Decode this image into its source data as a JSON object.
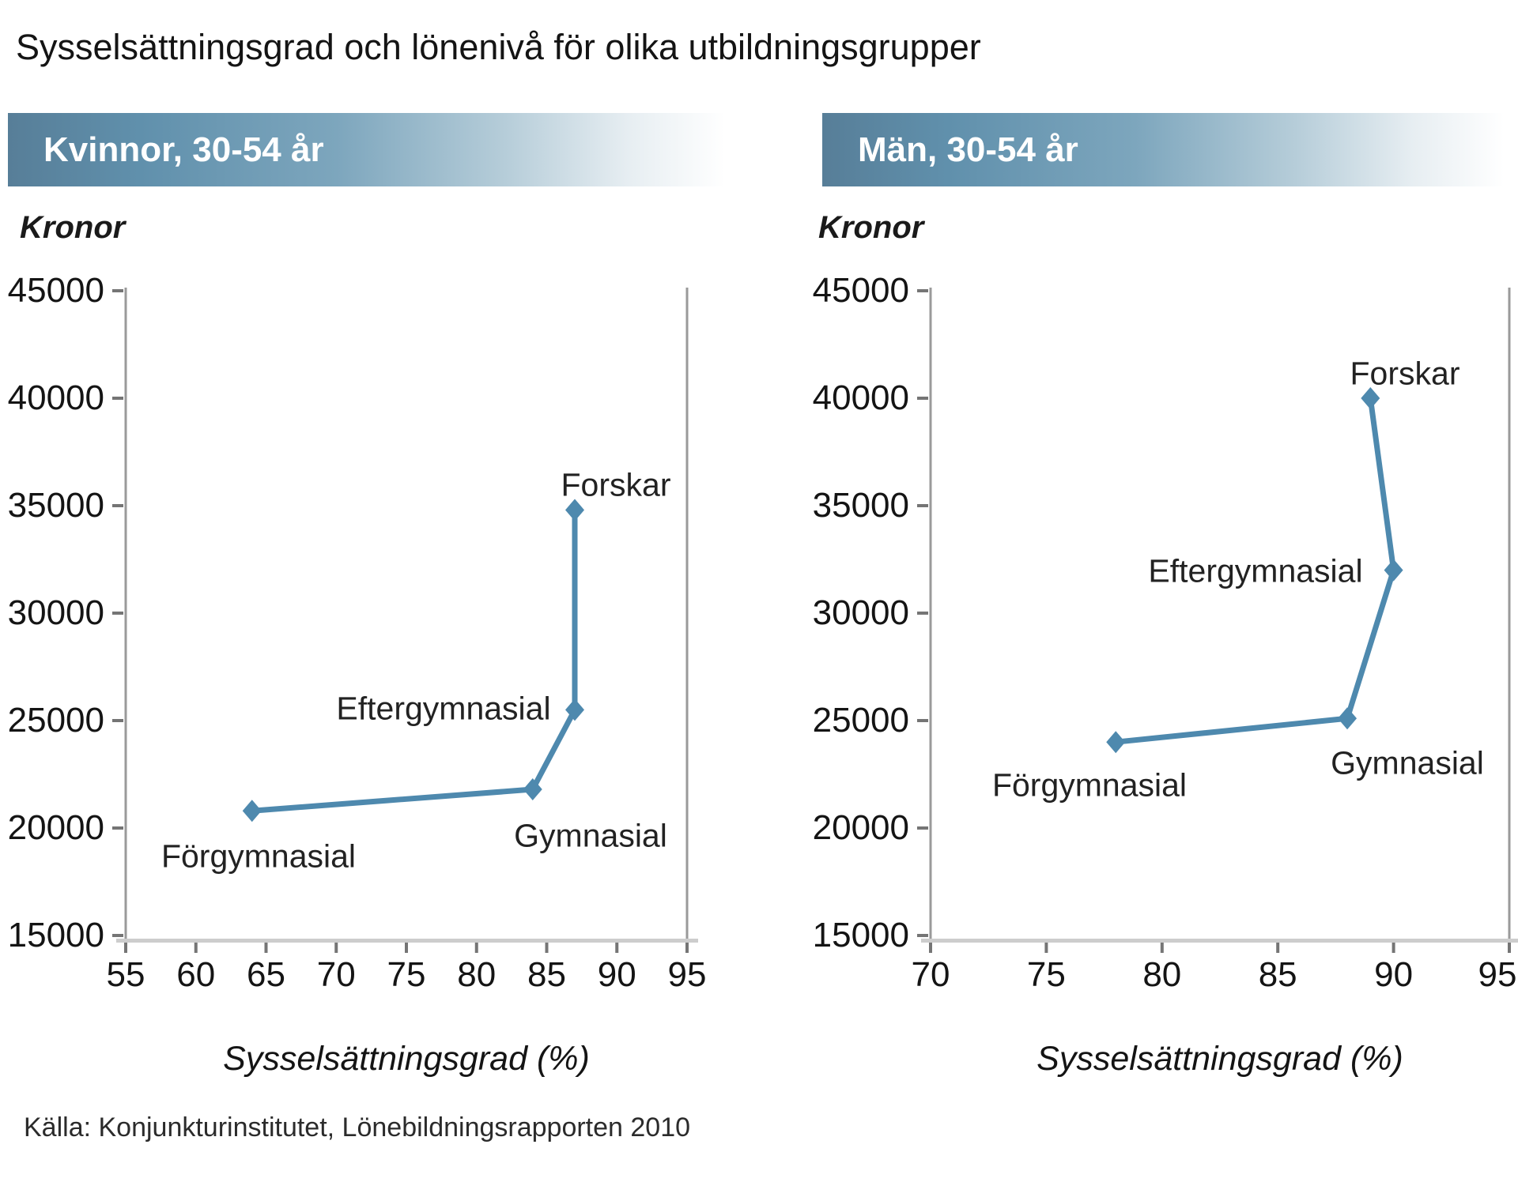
{
  "title": "Sysselsättningsgrad och lönenivå för olika utbildningsgrupper",
  "source": "Källa: Konjunkturinstitutet, Lönebildningsrapporten 2010",
  "colors": {
    "line": "#4e89ae",
    "marker": "#4e89ae",
    "axis": "#9a9a9a",
    "tick": "#757575",
    "x_axis_line": "#cdcdcd",
    "header_bar_start": "#577e98",
    "header_text": "#ffffff"
  },
  "chart_data": [
    {
      "type": "line",
      "panel_title": "Kvinnor, 30-54 år",
      "ylabel": "Kronor",
      "xlabel": "Sysselsättningsgrad (%)",
      "xlim": [
        55,
        95
      ],
      "ylim": [
        15000,
        45000
      ],
      "x_ticks": [
        55,
        60,
        65,
        70,
        75,
        80,
        85,
        90,
        95
      ],
      "y_ticks": [
        45000,
        40000,
        35000,
        30000,
        25000,
        20000,
        15000
      ],
      "grid": false,
      "legend": "none",
      "points": [
        {
          "label": "Förgymnasial",
          "x": 64,
          "y": 20800
        },
        {
          "label": "Gymnasial",
          "x": 84,
          "y": 21800
        },
        {
          "label": "Eftergymnasial",
          "x": 87,
          "y": 25500
        },
        {
          "label": "Forskar",
          "x": 87,
          "y": 34800
        }
      ]
    },
    {
      "type": "line",
      "panel_title": "Män, 30-54 år",
      "ylabel": "Kronor",
      "xlabel": "Sysselsättningsgrad (%)",
      "xlim": [
        70,
        95
      ],
      "ylim": [
        15000,
        45000
      ],
      "x_ticks": [
        70,
        75,
        80,
        85,
        90,
        95
      ],
      "y_ticks": [
        45000,
        40000,
        35000,
        30000,
        25000,
        20000,
        15000
      ],
      "grid": false,
      "legend": "none",
      "points": [
        {
          "label": "Förgymnasial",
          "x": 78,
          "y": 24000
        },
        {
          "label": "Gymnasial",
          "x": 88,
          "y": 25100
        },
        {
          "label": "Eftergymnasial",
          "x": 90,
          "y": 32000
        },
        {
          "label": "Forskar",
          "x": 89,
          "y": 40000
        }
      ]
    }
  ]
}
